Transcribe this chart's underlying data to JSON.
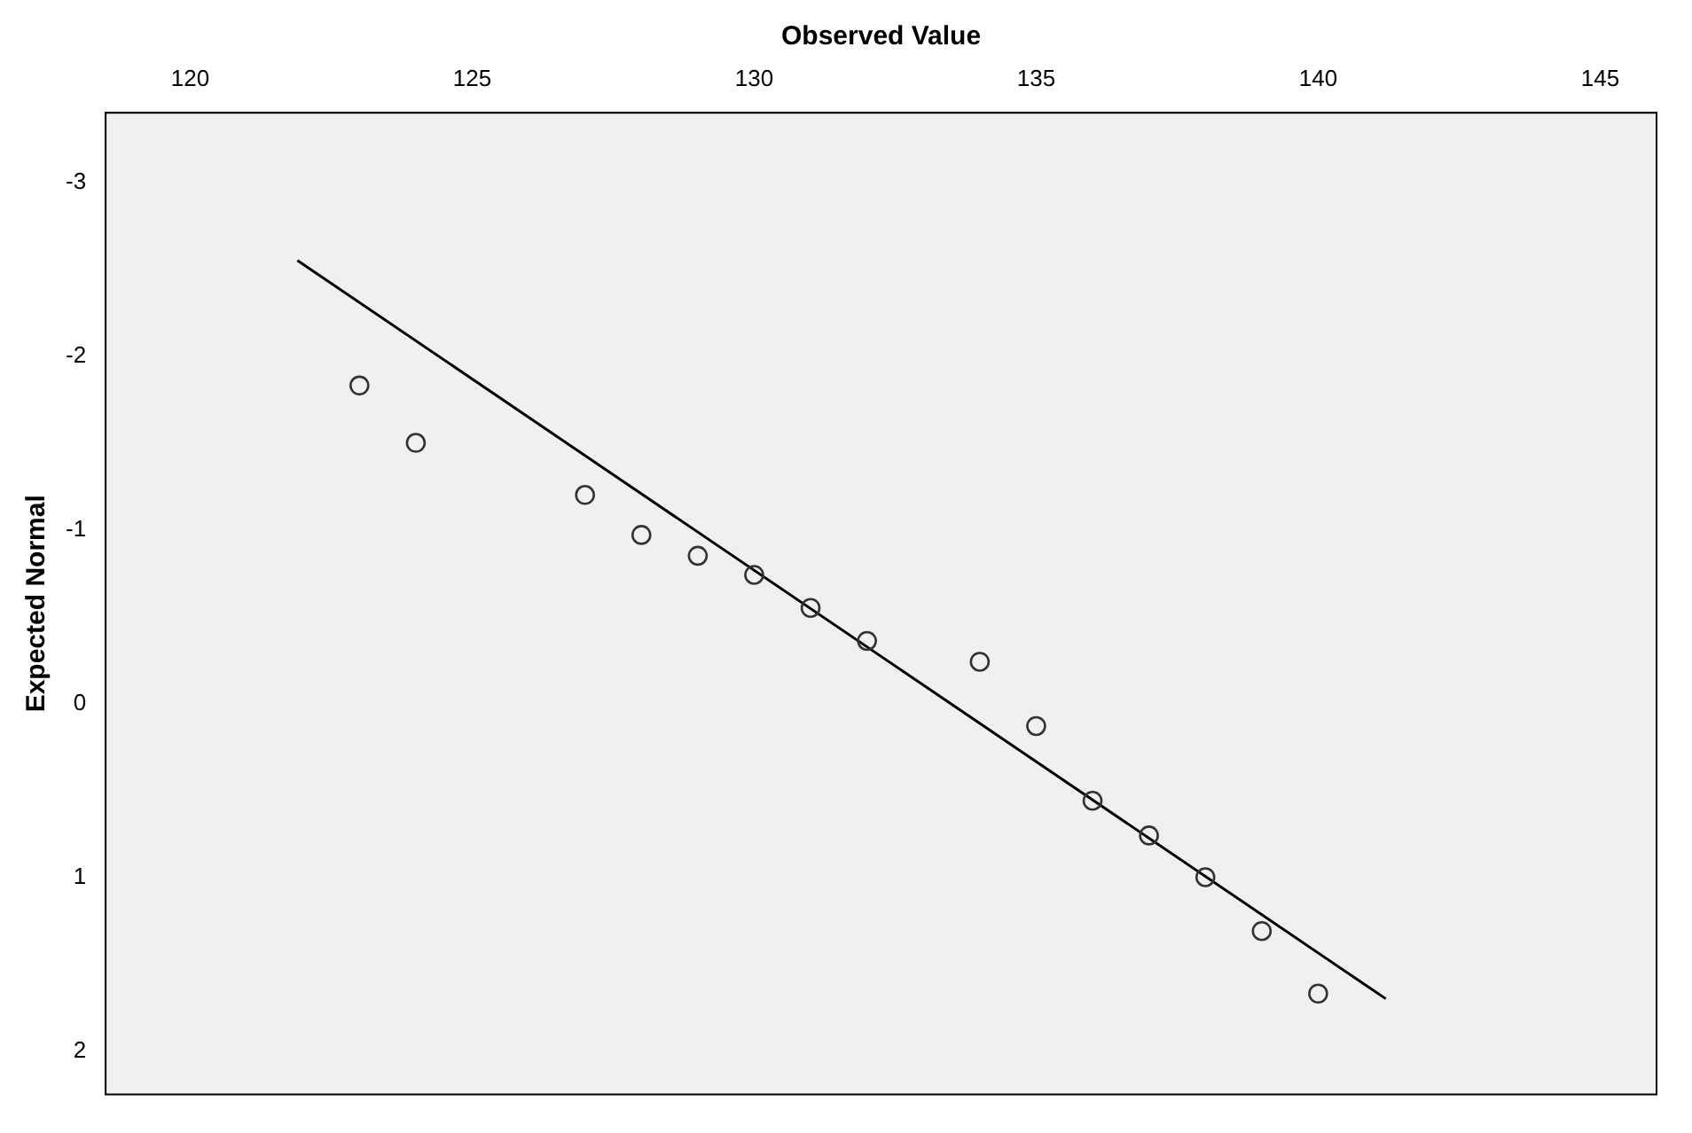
{
  "chart_data": {
    "type": "scatter",
    "xlabel": "Observed Value",
    "ylabel": "Expected Normal",
    "xlim": [
      118.5,
      146
    ],
    "xticks": [
      120,
      125,
      130,
      135,
      140,
      145
    ],
    "ylim": [
      2.25,
      -3.4
    ],
    "yticks": [
      -3,
      -2,
      -1,
      0,
      1,
      2
    ],
    "grid": false,
    "legend": false,
    "series": [
      {
        "marker": "circle",
        "color": "#333333",
        "x": [
          123,
          124,
          127,
          128,
          129,
          130,
          131,
          132,
          134,
          135,
          136,
          137,
          138,
          139,
          140
        ],
        "values": [
          -1.83,
          -1.5,
          -1.2,
          -0.97,
          -0.85,
          -0.74,
          -0.55,
          -0.36,
          -0.24,
          0.13,
          0.56,
          0.76,
          1.0,
          1.31,
          1.67
        ]
      },
      {
        "type": "line",
        "marker": "none",
        "color": "#000000",
        "x": [
          121.9,
          141.2
        ],
        "values": [
          -2.55,
          1.7
        ]
      }
    ]
  }
}
